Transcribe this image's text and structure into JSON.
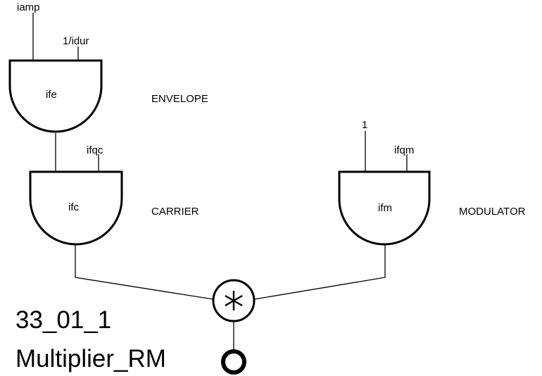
{
  "diagram": {
    "title_id": "33_01_1",
    "title_name": "Multiplier_RM",
    "envelope": {
      "input_amp": "iamp",
      "input_freq": "1/idur",
      "table": "ife",
      "label": "ENVELOPE"
    },
    "carrier": {
      "input_freq": "ifqc",
      "table": "ifc",
      "label": "CARRIER"
    },
    "modulator": {
      "input_amp": "1",
      "input_freq": "ifqm",
      "table": "ifm",
      "label": "MODULATOR"
    }
  }
}
